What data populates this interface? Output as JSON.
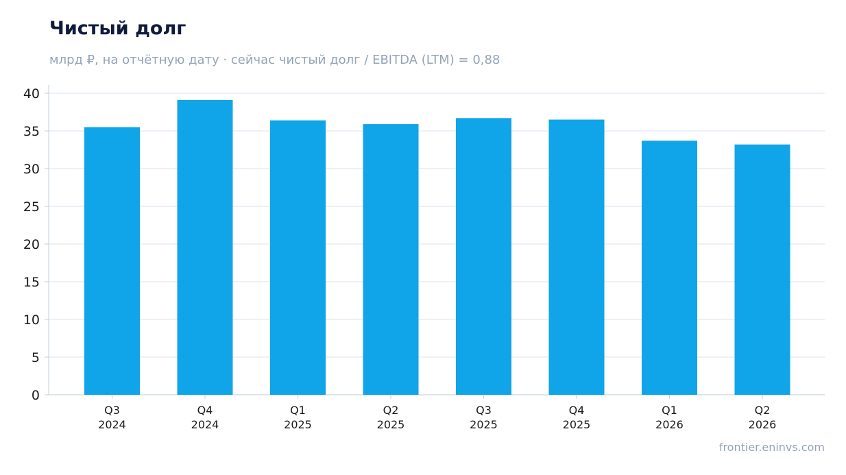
{
  "header": {
    "title": "Чистый долг",
    "subtitle": "млрд ₽, на отчётную дату · сейчас чистый долг / EBITDA (LTM) = 0,88"
  },
  "footer": {
    "source": "frontier.eninvs.com"
  },
  "colors": {
    "bar": "#10a4e8",
    "grid": "#e2e8f0",
    "axis": "#cbd5e1",
    "title": "#0f1b3d",
    "muted": "#94a3b8"
  },
  "chart_data": {
    "type": "bar",
    "title": "Чистый долг",
    "subtitle": "млрд ₽, на отчётную дату · сейчас чистый долг / EBITDA (LTM) = 0,88",
    "categories": [
      [
        "Q3",
        "2024"
      ],
      [
        "Q4",
        "2024"
      ],
      [
        "Q1",
        "2025"
      ],
      [
        "Q2",
        "2025"
      ],
      [
        "Q3",
        "2025"
      ],
      [
        "Q4",
        "2025"
      ],
      [
        "Q1",
        "2026"
      ],
      [
        "Q2",
        "2026"
      ]
    ],
    "values": [
      35.5,
      39.1,
      36.4,
      35.9,
      36.7,
      36.5,
      33.7,
      33.2
    ],
    "ylim": [
      0,
      40
    ],
    "yticks": [
      0,
      5,
      10,
      15,
      20,
      25,
      30,
      35,
      40
    ],
    "grid": true,
    "legend": "none"
  }
}
